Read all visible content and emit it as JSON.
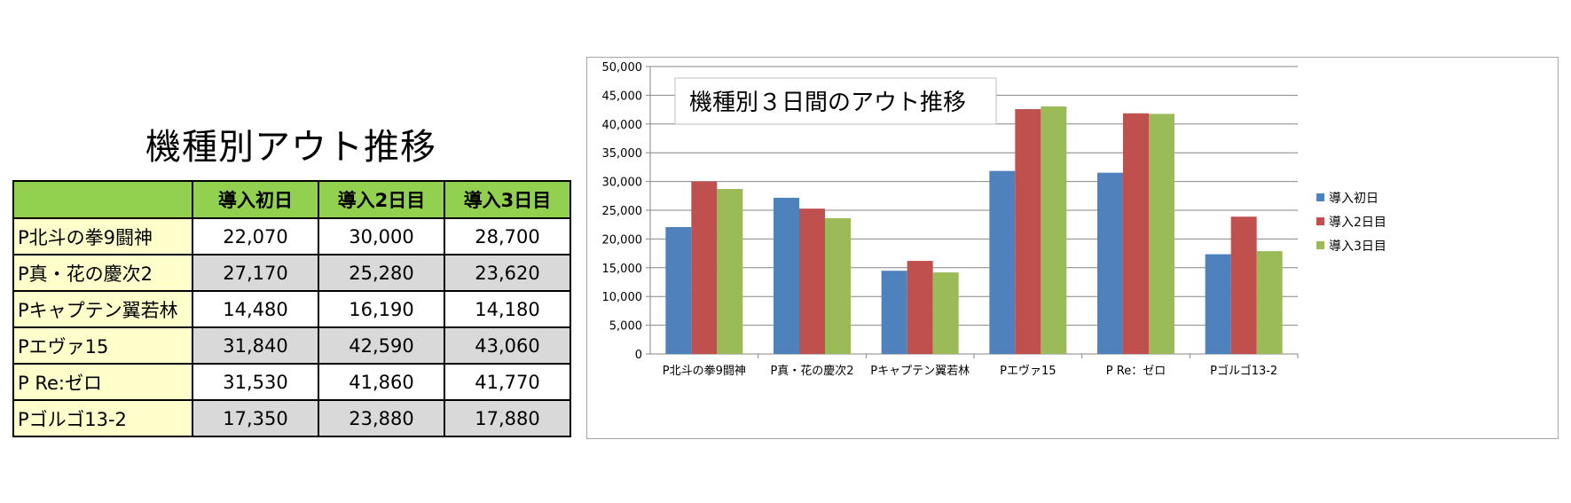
{
  "table": {
    "title": "機種別アウト推移",
    "headers": [
      "",
      "導入初日",
      "導入2日目",
      "導入3日目"
    ],
    "rows": [
      {
        "name": "P北斗の拳9闘神",
        "values": [
          "22,070",
          "30,000",
          "28,700"
        ]
      },
      {
        "name": "P真・花の慶次2",
        "values": [
          "27,170",
          "25,280",
          "23,620"
        ]
      },
      {
        "name": "Pキャプテン翼若林",
        "values": [
          "14,480",
          "16,190",
          "14,180"
        ]
      },
      {
        "name": "Pエヴァ15",
        "values": [
          "31,840",
          "42,590",
          "43,060"
        ]
      },
      {
        "name": "P Re:ゼロ",
        "values": [
          "31,530",
          "41,860",
          "41,770"
        ]
      },
      {
        "name": "Pゴルゴ13-2",
        "values": [
          "17,350",
          "23,880",
          "17,880"
        ]
      }
    ]
  },
  "chart_data": {
    "type": "bar",
    "title": "機種別３日間のアウト推移",
    "categories": [
      "P北斗の拳9闘神",
      "P真・花の慶次2",
      "Pキャプテン翼若林",
      "Pエヴァ15",
      "P Re：ゼロ",
      "Pゴルゴ13-2"
    ],
    "series": [
      {
        "name": "導入初日",
        "color": "#4f81bd",
        "values": [
          22070,
          27170,
          14480,
          31840,
          31530,
          17350
        ]
      },
      {
        "name": "導入2日目",
        "color": "#c0504d",
        "values": [
          30000,
          25280,
          16190,
          42590,
          41860,
          23880
        ]
      },
      {
        "name": "導入3日目",
        "color": "#9bbb59",
        "values": [
          28700,
          23620,
          14180,
          43060,
          41770,
          17880
        ]
      }
    ],
    "ylim": [
      0,
      50000
    ],
    "yticks": [
      "0",
      "5,000",
      "10,000",
      "15,000",
      "20,000",
      "25,000",
      "30,000",
      "35,000",
      "40,000",
      "45,000",
      "50,000"
    ],
    "grid": true,
    "legend": "right"
  }
}
